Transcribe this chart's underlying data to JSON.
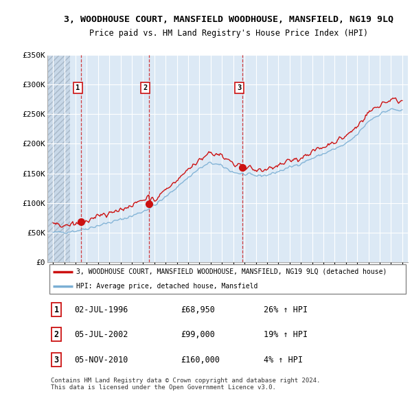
{
  "title": "3, WOODHOUSE COURT, MANSFIELD WOODHOUSE, MANSFIELD, NG19 9LQ",
  "subtitle": "Price paid vs. HM Land Registry's House Price Index (HPI)",
  "ylim": [
    0,
    350000
  ],
  "yticks": [
    0,
    50000,
    100000,
    150000,
    200000,
    250000,
    300000,
    350000
  ],
  "ytick_labels": [
    "£0",
    "£50K",
    "£100K",
    "£150K",
    "£200K",
    "£250K",
    "£300K",
    "£350K"
  ],
  "background_color": "#ffffff",
  "plot_bg_color": "#dce9f5",
  "grid_color": "#ffffff",
  "hpi_color": "#7bafd4",
  "price_color": "#cc1111",
  "legend_label_price": "3, WOODHOUSE COURT, MANSFIELD WOODHOUSE, MANSFIELD, NG19 9LQ (detached house)",
  "legend_label_hpi": "HPI: Average price, detached house, Mansfield",
  "sales": [
    {
      "label": "1",
      "date_str": "02-JUL-1996",
      "date_x": 1996.5,
      "price": 68950,
      "pct": "26%",
      "dir": "↑"
    },
    {
      "label": "2",
      "date_str": "05-JUL-2002",
      "date_x": 2002.5,
      "price": 99000,
      "pct": "19%",
      "dir": "↑"
    },
    {
      "label": "3",
      "date_str": "05-NOV-2010",
      "date_x": 2010.83,
      "price": 160000,
      "pct": "4%",
      "dir": "↑"
    }
  ],
  "footer": "Contains HM Land Registry data © Crown copyright and database right 2024.\nThis data is licensed under the Open Government Licence v3.0.",
  "xmin": 1994.0,
  "xmax": 2025.5,
  "xticks": [
    1994,
    1995,
    1996,
    1997,
    1998,
    1999,
    2000,
    2001,
    2002,
    2003,
    2004,
    2005,
    2006,
    2007,
    2008,
    2009,
    2010,
    2011,
    2012,
    2013,
    2014,
    2015,
    2016,
    2017,
    2018,
    2019,
    2020,
    2021,
    2022,
    2023,
    2024,
    2025
  ],
  "hatch_end_x": 1995.5
}
